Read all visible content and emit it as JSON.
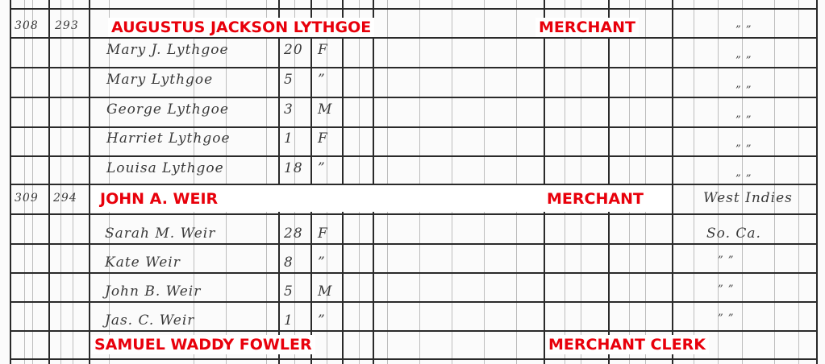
{
  "labels": {
    "person1_name": "AUGUSTUS JACKSON LYTHGOE",
    "person1_occupation": "MERCHANT",
    "person2_name": "JOHN A. WEIR",
    "person2_occupation": "MERCHANT",
    "person3_name": "SAMUEL WADDY FOWLER",
    "person3_occupation": "MERCHANT CLERK"
  },
  "household1": {
    "dwelling": "308",
    "family": "293",
    "members": [
      {
        "name": "Mary J. Lythgoe",
        "age": "20",
        "sex": "F"
      },
      {
        "name": "Mary Lythgoe",
        "age": "5",
        "sex": "”"
      },
      {
        "name": "George Lythgoe",
        "age": "3",
        "sex": "M"
      },
      {
        "name": "Harriet Lythgoe",
        "age": "1",
        "sex": "F"
      },
      {
        "name": "Louisa Lythgoe",
        "age": "18",
        "sex": "”"
      }
    ]
  },
  "household2": {
    "dwelling": "309",
    "family": "294",
    "birthplace": "West Indies",
    "members": [
      {
        "name": "Sarah M. Weir",
        "age": "28",
        "sex": "F",
        "birthplace": "So. Ca."
      },
      {
        "name": "Kate Weir",
        "age": "8",
        "sex": "”",
        "birthplace": "” ”"
      },
      {
        "name": "John B. Weir",
        "age": "5",
        "sex": "M",
        "birthplace": "” ”"
      },
      {
        "name": "Jas. C. Weir",
        "age": "1",
        "sex": "”",
        "birthplace": "” ”"
      }
    ]
  },
  "ditto": "”   ”",
  "colors": {
    "label_red": "#e8000b",
    "ink": "#3a3a3a"
  }
}
